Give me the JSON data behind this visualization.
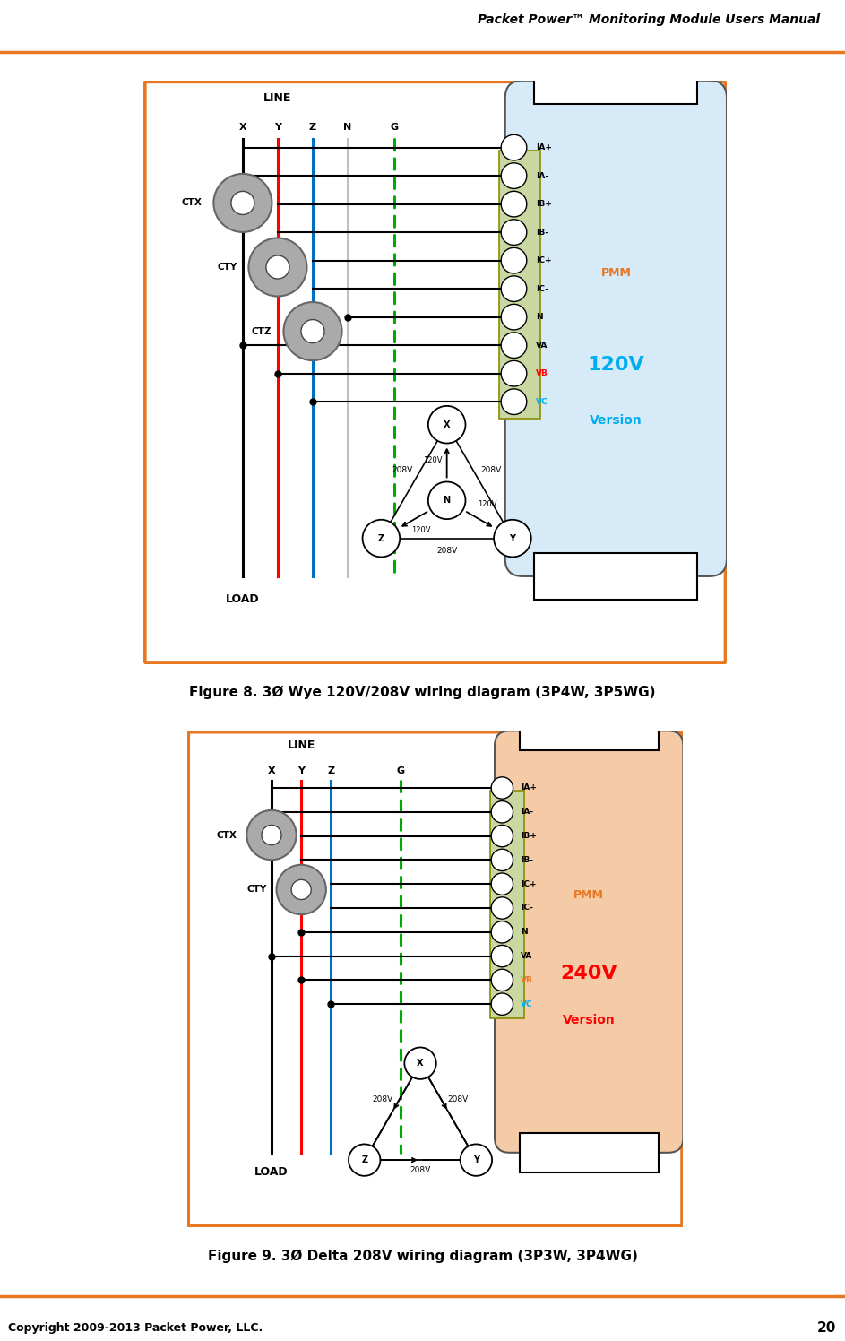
{
  "page_title": "Packet Power™ Monitoring Module Users Manual",
  "page_num": "20",
  "copyright": "Copyright 2009-2013 Packet Power, LLC.",
  "orange": "#E87722",
  "fig1_title": "Figure 8. 3Ø Wye 120V/208V wiring diagram (3P4W, 3P5WG)",
  "fig2_title": "Figure 9. 3Ø Delta 208V wiring diagram (3P3W, 3P4WG)",
  "pmm_label": "PMM",
  "orange_color": "#E87722",
  "cyan_color": "#00AEEF",
  "red_color": "#FF0000",
  "fig1_version_line1": "120V",
  "fig1_version_line2": "Version",
  "fig2_version_line1": "240V",
  "fig2_version_line2": "Version",
  "terminals": [
    "IA+",
    "IA-",
    "IB+",
    "IB-",
    "IC+",
    "IC-",
    "N",
    "VA",
    "VB",
    "VC"
  ],
  "term_colors_1": [
    "black",
    "black",
    "black",
    "black",
    "black",
    "black",
    "black",
    "black",
    "#FF0000",
    "#00AEEF"
  ],
  "term_colors_2": [
    "black",
    "black",
    "black",
    "black",
    "black",
    "black",
    "black",
    "black",
    "#E87722",
    "#00AEEF"
  ],
  "wire_color_X": "black",
  "wire_color_Y": "#FF0000",
  "wire_color_Z": "#0070C0",
  "wire_color_N": "#C0C0C0",
  "wire_color_G": "#00AA00",
  "pmm_bg_1": "#D6EAF8",
  "pmm_bg_2": "#F5CBA7",
  "connector_bg": "#C8D8A0",
  "connector_edge": "#8B8B00"
}
